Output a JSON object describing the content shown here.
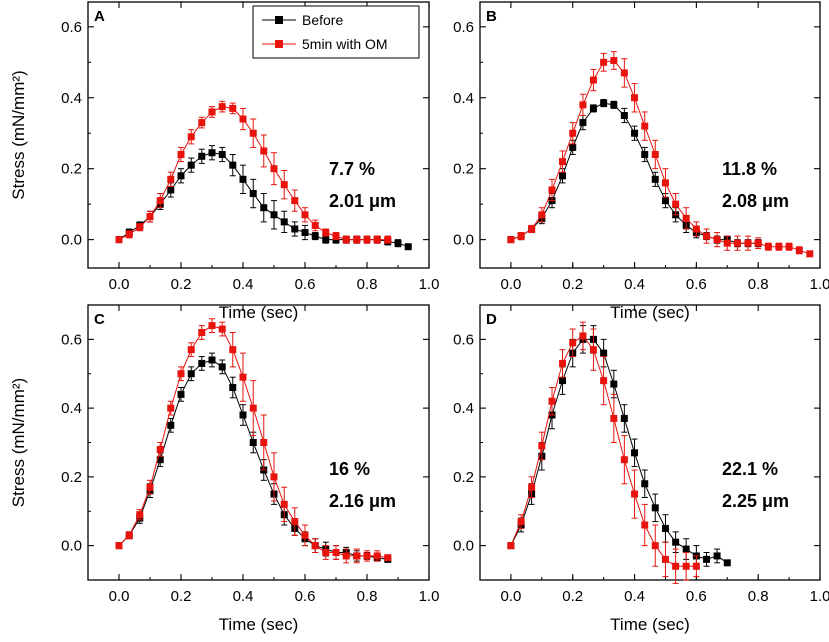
{
  "colors": {
    "before": "#000000",
    "om": "#e8130d",
    "axis": "#000000"
  },
  "chart_data": [
    {
      "type": "line",
      "panel": "A",
      "xlabel": "Time (sec)",
      "ylabel": "Stress (mN/mm²)",
      "xlim": [
        -0.1,
        1.0
      ],
      "ylim": [
        -0.08,
        0.67
      ],
      "xticks": [
        "0.0",
        "0.2",
        "0.4",
        "0.6",
        "0.8",
        "1.0"
      ],
      "yticks": [
        "0.0",
        "0.2",
        "0.4",
        "0.6"
      ],
      "annotation": {
        "percent": "7.7 %",
        "length": "2.01 μm"
      },
      "legend": {
        "position": "top-left",
        "entries": [
          "Before",
          "5min with OM"
        ]
      },
      "series": [
        {
          "name": "Before",
          "color": "#000000",
          "x": [
            0.0,
            0.033,
            0.067,
            0.1,
            0.133,
            0.167,
            0.2,
            0.233,
            0.267,
            0.3,
            0.333,
            0.367,
            0.4,
            0.433,
            0.467,
            0.5,
            0.533,
            0.567,
            0.6,
            0.633,
            0.667,
            0.7,
            0.733,
            0.767,
            0.8,
            0.833,
            0.867,
            0.9,
            0.933
          ],
          "y": [
            0.0,
            0.02,
            0.04,
            0.065,
            0.1,
            0.14,
            0.18,
            0.21,
            0.235,
            0.245,
            0.24,
            0.21,
            0.17,
            0.13,
            0.09,
            0.07,
            0.05,
            0.03,
            0.02,
            0.01,
            0.0,
            0.0,
            0.0,
            0.0,
            0.0,
            0.0,
            -0.005,
            -0.01,
            -0.02
          ],
          "err": [
            0,
            0.01,
            0.01,
            0.015,
            0.015,
            0.02,
            0.02,
            0.02,
            0.02,
            0.02,
            0.02,
            0.03,
            0.04,
            0.04,
            0.04,
            0.04,
            0.03,
            0.02,
            0.02,
            0.01,
            0.01,
            0.01,
            0.01,
            0.01,
            0.01,
            0.01,
            0.01,
            0.01,
            0
          ]
        },
        {
          "name": "5min with OM",
          "color": "#e8130d",
          "x": [
            0.0,
            0.033,
            0.067,
            0.1,
            0.133,
            0.167,
            0.2,
            0.233,
            0.267,
            0.3,
            0.333,
            0.367,
            0.4,
            0.433,
            0.467,
            0.5,
            0.533,
            0.567,
            0.6,
            0.633,
            0.667,
            0.7,
            0.733,
            0.767,
            0.8,
            0.833,
            0.867
          ],
          "y": [
            0.0,
            0.015,
            0.035,
            0.065,
            0.11,
            0.17,
            0.24,
            0.29,
            0.33,
            0.36,
            0.375,
            0.37,
            0.34,
            0.3,
            0.25,
            0.2,
            0.155,
            0.11,
            0.07,
            0.04,
            0.02,
            0.01,
            0.0,
            0.0,
            0.0,
            0.0,
            0.0
          ],
          "err": [
            0,
            0.01,
            0.01,
            0.015,
            0.02,
            0.02,
            0.02,
            0.02,
            0.015,
            0.015,
            0.015,
            0.015,
            0.03,
            0.04,
            0.045,
            0.045,
            0.04,
            0.03,
            0.02,
            0.015,
            0.01,
            0.01,
            0.01,
            0.01,
            0.01,
            0.01,
            0.01
          ]
        }
      ]
    },
    {
      "type": "line",
      "panel": "B",
      "xlabel": "Time (sec)",
      "ylabel": "",
      "xlim": [
        -0.1,
        1.0
      ],
      "ylim": [
        -0.08,
        0.67
      ],
      "xticks": [
        "0.0",
        "0.2",
        "0.4",
        "0.6",
        "0.8",
        "1.0"
      ],
      "yticks": [
        "0.0",
        "0.2",
        "0.4",
        "0.6"
      ],
      "annotation": {
        "percent": "11.8 %",
        "length": "2.08 μm"
      },
      "series": [
        {
          "name": "Before",
          "color": "#000000",
          "x": [
            0.0,
            0.033,
            0.067,
            0.1,
            0.133,
            0.167,
            0.2,
            0.233,
            0.267,
            0.3,
            0.333,
            0.367,
            0.4,
            0.433,
            0.467,
            0.5,
            0.533,
            0.567,
            0.6,
            0.633,
            0.667,
            0.7,
            0.733,
            0.767,
            0.8
          ],
          "y": [
            0.0,
            0.01,
            0.03,
            0.06,
            0.11,
            0.18,
            0.26,
            0.33,
            0.37,
            0.385,
            0.38,
            0.35,
            0.3,
            0.24,
            0.17,
            0.11,
            0.07,
            0.04,
            0.02,
            0.01,
            0.0,
            0.0,
            -0.01,
            -0.01,
            -0.01
          ],
          "err": [
            0,
            0.01,
            0.01,
            0.015,
            0.02,
            0.02,
            0.02,
            0.02,
            0.01,
            0.01,
            0.01,
            0.02,
            0.02,
            0.02,
            0.02,
            0.02,
            0.02,
            0.02,
            0.015,
            0.01,
            0.01,
            0.01,
            0.01,
            0.01,
            0.01
          ]
        },
        {
          "name": "5min with OM",
          "color": "#e8130d",
          "x": [
            0.0,
            0.033,
            0.067,
            0.1,
            0.133,
            0.167,
            0.2,
            0.233,
            0.267,
            0.3,
            0.333,
            0.367,
            0.4,
            0.433,
            0.467,
            0.5,
            0.533,
            0.567,
            0.6,
            0.633,
            0.667,
            0.7,
            0.733,
            0.767,
            0.8,
            0.833,
            0.867,
            0.9,
            0.933,
            0.967
          ],
          "y": [
            0.0,
            0.01,
            0.03,
            0.07,
            0.14,
            0.22,
            0.3,
            0.38,
            0.45,
            0.5,
            0.505,
            0.47,
            0.4,
            0.32,
            0.24,
            0.16,
            0.1,
            0.06,
            0.03,
            0.01,
            0.0,
            -0.01,
            -0.01,
            -0.01,
            -0.01,
            -0.02,
            -0.02,
            -0.02,
            -0.03,
            -0.04
          ],
          "err": [
            0,
            0.01,
            0.01,
            0.02,
            0.03,
            0.03,
            0.03,
            0.03,
            0.03,
            0.025,
            0.025,
            0.04,
            0.04,
            0.04,
            0.04,
            0.04,
            0.03,
            0.03,
            0.02,
            0.02,
            0.02,
            0.02,
            0.02,
            0.02,
            0.015,
            0.01,
            0.01,
            0.01,
            0.01,
            0
          ]
        }
      ]
    },
    {
      "type": "line",
      "panel": "C",
      "xlabel": "Time (sec)",
      "ylabel": "Stress (mN/mm²)",
      "xlim": [
        -0.1,
        1.0
      ],
      "ylim": [
        -0.1,
        0.7
      ],
      "xticks": [
        "0.0",
        "0.2",
        "0.4",
        "0.6",
        "0.8",
        "1.0"
      ],
      "yticks": [
        "0.0",
        "0.2",
        "0.4",
        "0.6"
      ],
      "annotation": {
        "percent": "16 %",
        "length": "2.16 μm"
      },
      "series": [
        {
          "name": "Before",
          "color": "#000000",
          "x": [
            0.0,
            0.033,
            0.067,
            0.1,
            0.133,
            0.167,
            0.2,
            0.233,
            0.267,
            0.3,
            0.333,
            0.367,
            0.4,
            0.433,
            0.467,
            0.5,
            0.533,
            0.567,
            0.6,
            0.633,
            0.667,
            0.7,
            0.733,
            0.767,
            0.8,
            0.833,
            0.867
          ],
          "y": [
            0.0,
            0.03,
            0.08,
            0.16,
            0.25,
            0.35,
            0.44,
            0.5,
            0.53,
            0.54,
            0.52,
            0.46,
            0.38,
            0.3,
            0.22,
            0.15,
            0.09,
            0.05,
            0.02,
            0.0,
            -0.01,
            -0.02,
            -0.02,
            -0.03,
            -0.03,
            -0.035,
            -0.04
          ],
          "err": [
            0,
            0.01,
            0.015,
            0.02,
            0.02,
            0.02,
            0.02,
            0.02,
            0.02,
            0.02,
            0.02,
            0.03,
            0.03,
            0.03,
            0.03,
            0.03,
            0.03,
            0.02,
            0.02,
            0.02,
            0.02,
            0.02,
            0.015,
            0.015,
            0.01,
            0.01,
            0
          ]
        },
        {
          "name": "5min with OM",
          "color": "#e8130d",
          "x": [
            0.0,
            0.033,
            0.067,
            0.1,
            0.133,
            0.167,
            0.2,
            0.233,
            0.267,
            0.3,
            0.333,
            0.367,
            0.4,
            0.433,
            0.467,
            0.5,
            0.533,
            0.567,
            0.6,
            0.633,
            0.667,
            0.7,
            0.733,
            0.767,
            0.8,
            0.833,
            0.867
          ],
          "y": [
            0.0,
            0.03,
            0.09,
            0.17,
            0.28,
            0.4,
            0.5,
            0.57,
            0.62,
            0.64,
            0.63,
            0.57,
            0.49,
            0.4,
            0.3,
            0.2,
            0.12,
            0.07,
            0.03,
            0.0,
            -0.02,
            -0.02,
            -0.03,
            -0.03,
            -0.03,
            -0.03,
            -0.035
          ],
          "err": [
            0,
            0.01,
            0.015,
            0.02,
            0.02,
            0.02,
            0.02,
            0.02,
            0.02,
            0.02,
            0.02,
            0.05,
            0.07,
            0.08,
            0.08,
            0.07,
            0.05,
            0.04,
            0.03,
            0.02,
            0.02,
            0.02,
            0.02,
            0.02,
            0.015,
            0.015,
            0
          ]
        }
      ]
    },
    {
      "type": "line",
      "panel": "D",
      "xlabel": "Time (sec)",
      "ylabel": "",
      "xlim": [
        -0.1,
        1.0
      ],
      "ylim": [
        -0.1,
        0.7
      ],
      "xticks": [
        "0.0",
        "0.2",
        "0.4",
        "0.6",
        "0.8",
        "1.0"
      ],
      "yticks": [
        "0.0",
        "0.2",
        "0.4",
        "0.6"
      ],
      "annotation": {
        "percent": "22.1 %",
        "length": "2.25 μm"
      },
      "series": [
        {
          "name": "Before",
          "color": "#000000",
          "x": [
            0.0,
            0.033,
            0.067,
            0.1,
            0.133,
            0.167,
            0.2,
            0.233,
            0.267,
            0.3,
            0.333,
            0.367,
            0.4,
            0.433,
            0.467,
            0.5,
            0.533,
            0.567,
            0.6,
            0.633,
            0.667,
            0.7
          ],
          "y": [
            0.0,
            0.06,
            0.15,
            0.26,
            0.38,
            0.48,
            0.56,
            0.6,
            0.6,
            0.56,
            0.47,
            0.37,
            0.27,
            0.18,
            0.11,
            0.05,
            0.01,
            -0.01,
            -0.03,
            -0.04,
            -0.03,
            -0.05
          ],
          "err": [
            0,
            0.02,
            0.03,
            0.04,
            0.04,
            0.04,
            0.04,
            0.04,
            0.04,
            0.04,
            0.04,
            0.04,
            0.04,
            0.04,
            0.04,
            0.04,
            0.03,
            0.03,
            0.03,
            0.02,
            0.02,
            0
          ]
        },
        {
          "name": "5min with OM",
          "color": "#e8130d",
          "x": [
            0.0,
            0.033,
            0.067,
            0.1,
            0.133,
            0.167,
            0.2,
            0.233,
            0.267,
            0.3,
            0.333,
            0.367,
            0.4,
            0.433,
            0.467,
            0.5,
            0.533,
            0.567,
            0.6
          ],
          "y": [
            0.0,
            0.07,
            0.17,
            0.29,
            0.42,
            0.53,
            0.59,
            0.61,
            0.57,
            0.48,
            0.37,
            0.25,
            0.15,
            0.06,
            0.0,
            -0.04,
            -0.06,
            -0.06,
            -0.06
          ],
          "err": [
            0,
            0.02,
            0.03,
            0.04,
            0.04,
            0.04,
            0.04,
            0.04,
            0.06,
            0.07,
            0.07,
            0.07,
            0.07,
            0.06,
            0.06,
            0.05,
            0.05,
            0.04,
            0.03
          ]
        }
      ]
    }
  ]
}
